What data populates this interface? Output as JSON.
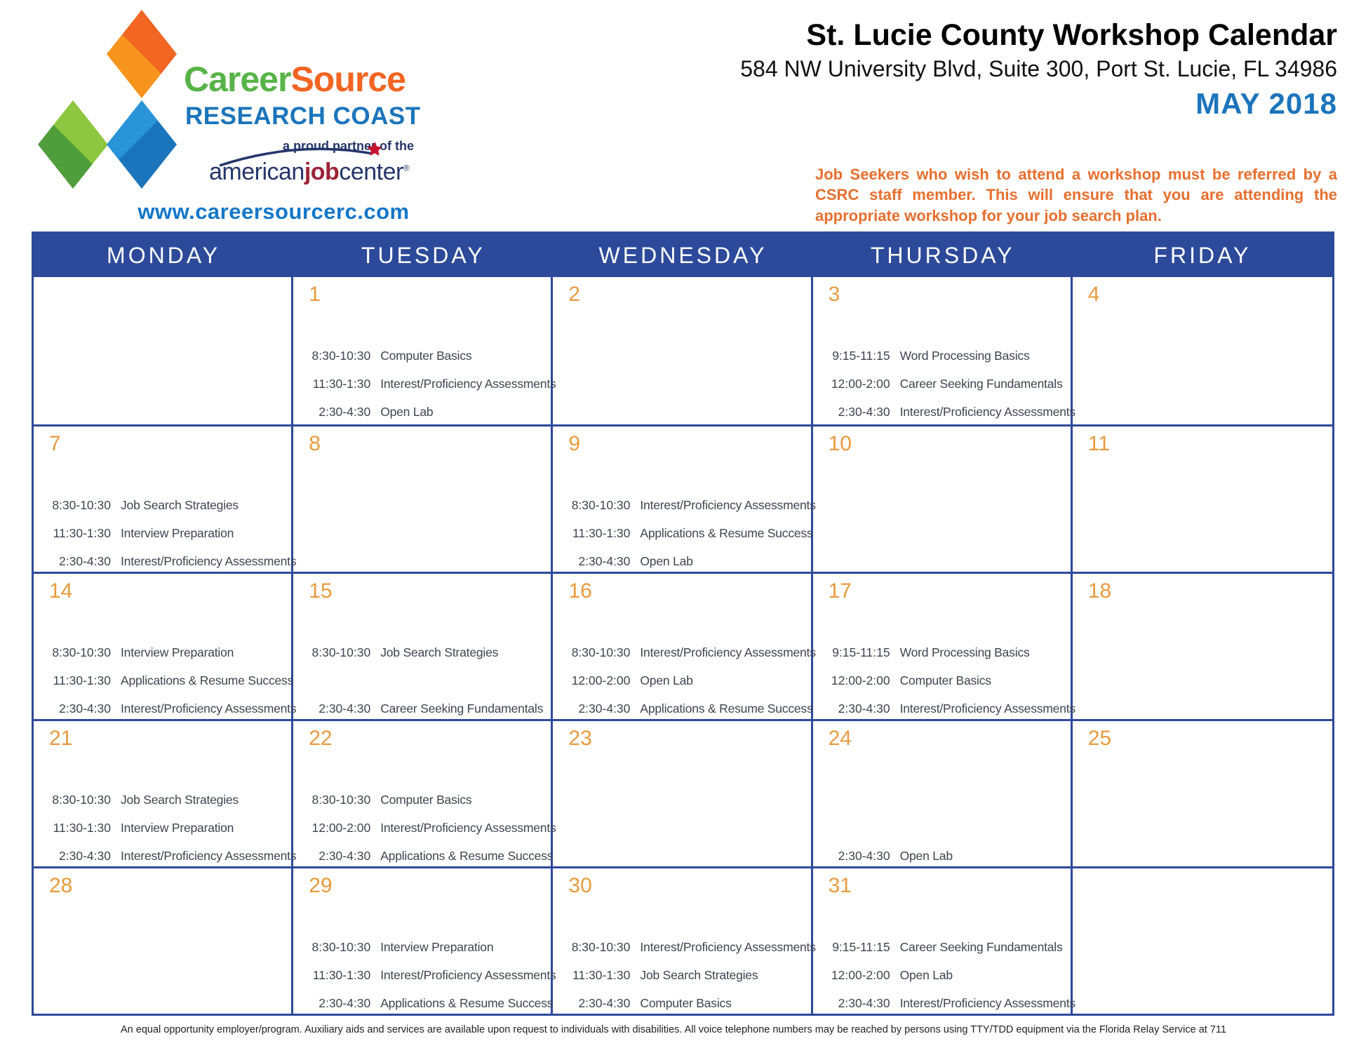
{
  "header": {
    "logo": {
      "brand_career": "Career",
      "brand_source": "Source",
      "brand_sub": "RESEARCH COAST",
      "partner_text": "a proud partner of the",
      "ajc_american": "american",
      "ajc_job": "job",
      "ajc_center": "center",
      "registered_mark": "®",
      "website": "www.careersourcerc.com"
    },
    "title": "St. Lucie County Workshop Calendar",
    "address": "584 NW University Blvd, Suite 300, Port St. Lucie, FL 34986",
    "month": "MAY 2018",
    "notice": "Job Seekers who wish to attend a workshop must be referred by a CSRC staff member. This will ensure that you are attending the appropriate workshop for your job search plan."
  },
  "calendar": {
    "weekdays": [
      "MONDAY",
      "TUESDAY",
      "WEDNESDAY",
      "THURSDAY",
      "FRIDAY"
    ],
    "weeks": [
      [
        {
          "day": "",
          "events": [
            null,
            null,
            null
          ]
        },
        {
          "day": "1",
          "events": [
            {
              "time": "8:30-10:30",
              "title": "Computer Basics"
            },
            {
              "time": "11:30-1:30",
              "title": "Interest/Proficiency Assessments"
            },
            {
              "time": "2:30-4:30",
              "title": "Open Lab"
            }
          ]
        },
        {
          "day": "2",
          "events": [
            null,
            null,
            null
          ]
        },
        {
          "day": "3",
          "events": [
            {
              "time": "9:15-11:15",
              "title": "Word Processing Basics"
            },
            {
              "time": "12:00-2:00",
              "title": "Career Seeking Fundamentals"
            },
            {
              "time": "2:30-4:30",
              "title": "Interest/Proficiency Assessments"
            }
          ]
        },
        {
          "day": "4",
          "events": [
            null,
            null,
            null
          ]
        }
      ],
      [
        {
          "day": "7",
          "events": [
            {
              "time": "8:30-10:30",
              "title": "Job Search Strategies"
            },
            {
              "time": "11:30-1:30",
              "title": "Interview Preparation"
            },
            {
              "time": "2:30-4:30",
              "title": "Interest/Proficiency Assessments"
            }
          ]
        },
        {
          "day": "8",
          "events": [
            null,
            null,
            null
          ]
        },
        {
          "day": "9",
          "events": [
            {
              "time": "8:30-10:30",
              "title": "Interest/Proficiency Assessments"
            },
            {
              "time": "11:30-1:30",
              "title": "Applications & Resume Success"
            },
            {
              "time": "2:30-4:30",
              "title": "Open Lab"
            }
          ]
        },
        {
          "day": "10",
          "events": [
            null,
            null,
            null
          ]
        },
        {
          "day": "11",
          "events": [
            null,
            null,
            null
          ]
        }
      ],
      [
        {
          "day": "14",
          "events": [
            {
              "time": "8:30-10:30",
              "title": "Interview Preparation"
            },
            {
              "time": "11:30-1:30",
              "title": "Applications & Resume Success"
            },
            {
              "time": "2:30-4:30",
              "title": "Interest/Proficiency Assessments"
            }
          ]
        },
        {
          "day": "15",
          "events": [
            {
              "time": "8:30-10:30",
              "title": "Job Search Strategies"
            },
            null,
            {
              "time": "2:30-4:30",
              "title": "Career Seeking Fundamentals"
            }
          ]
        },
        {
          "day": "16",
          "events": [
            {
              "time": "8:30-10:30",
              "title": "Interest/Proficiency Assessments"
            },
            {
              "time": "12:00-2:00",
              "title": "Open Lab"
            },
            {
              "time": "2:30-4:30",
              "title": "Applications & Resume Success"
            }
          ]
        },
        {
          "day": "17",
          "events": [
            {
              "time": "9:15-11:15",
              "title": "Word Processing Basics"
            },
            {
              "time": "12:00-2:00",
              "title": "Computer Basics"
            },
            {
              "time": "2:30-4:30",
              "title": "Interest/Proficiency Assessments"
            }
          ]
        },
        {
          "day": "18",
          "events": [
            null,
            null,
            null
          ]
        }
      ],
      [
        {
          "day": "21",
          "events": [
            {
              "time": "8:30-10:30",
              "title": "Job Search Strategies"
            },
            {
              "time": "11:30-1:30",
              "title": "Interview Preparation"
            },
            {
              "time": "2:30-4:30",
              "title": "Interest/Proficiency Assessments"
            }
          ]
        },
        {
          "day": "22",
          "events": [
            {
              "time": "8:30-10:30",
              "title": "Computer Basics"
            },
            {
              "time": "12:00-2:00",
              "title": "Interest/Proficiency Assessments"
            },
            {
              "time": "2:30-4:30",
              "title": "Applications & Resume Success"
            }
          ]
        },
        {
          "day": "23",
          "events": [
            null,
            null,
            null
          ]
        },
        {
          "day": "24",
          "events": [
            null,
            null,
            {
              "time": "2:30-4:30",
              "title": "Open Lab"
            }
          ]
        },
        {
          "day": "25",
          "events": [
            null,
            null,
            null
          ]
        }
      ],
      [
        {
          "day": "28",
          "events": [
            null,
            null,
            null
          ]
        },
        {
          "day": "29",
          "events": [
            {
              "time": "8:30-10:30",
              "title": "Interview Preparation"
            },
            {
              "time": "11:30-1:30",
              "title": "Interest/Proficiency Assessments"
            },
            {
              "time": "2:30-4:30",
              "title": "Applications & Resume Success"
            }
          ]
        },
        {
          "day": "30",
          "events": [
            {
              "time": "8:30-10:30",
              "title": "Interest/Proficiency Assessments"
            },
            {
              "time": "11:30-1:30",
              "title": "Job Search Strategies"
            },
            {
              "time": "2:30-4:30",
              "title": "Computer Basics"
            }
          ]
        },
        {
          "day": "31",
          "events": [
            {
              "time": "9:15-11:15",
              "title": "Career Seeking Fundamentals"
            },
            {
              "time": "12:00-2:00",
              "title": "Open Lab"
            },
            {
              "time": "2:30-4:30",
              "title": "Interest/Proficiency Assessments"
            }
          ]
        },
        {
          "day": "",
          "events": [
            null,
            null,
            null
          ]
        }
      ]
    ]
  },
  "footer": "An equal opportunity employer/program. Auxiliary aids and services are available upon request to individuals with disabilities. All voice telephone numbers may be reached by persons using TTY/TDD equipment via the Florida Relay Service at 711",
  "colors": {
    "grid_blue": "#2d4a9a",
    "day_number_orange": "#e99a3e",
    "event_text": "#3f4450",
    "month_blue": "#1b75bc",
    "website_blue": "#1377c9",
    "notice_orange": "#e76f2e",
    "logo_green": "#57b447",
    "logo_orange": "#f26522",
    "logo_light_orange": "#f7941d",
    "logo_blue": "#1b75bc",
    "logo_light_blue": "#2a94d8",
    "logo_dark_green": "#4f9e3b",
    "logo_light_green": "#8dc63f",
    "ajc_navy": "#23366b",
    "ajc_red": "#9d2235",
    "star_red": "#c4122f"
  }
}
